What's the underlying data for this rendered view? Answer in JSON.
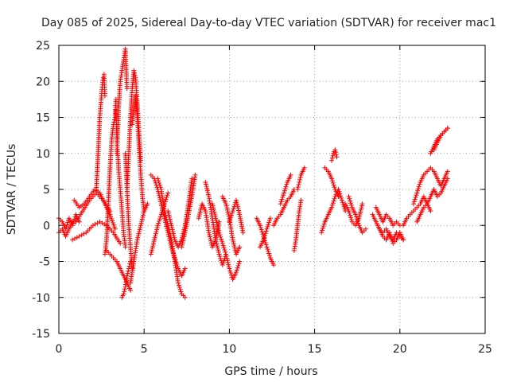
{
  "chart_data": {
    "type": "scatter",
    "title": "Day 085 of 2025, Sidereal Day-to-day VTEC variation (SDTVAR) for receiver mac1",
    "xlabel": "GPS time / hours",
    "ylabel": "SDTVAR / TECUs",
    "xlim": [
      0,
      25
    ],
    "ylim": [
      -15,
      25
    ],
    "xticks": [
      0,
      5,
      10,
      15,
      20,
      25
    ],
    "yticks": [
      -15,
      -10,
      -5,
      0,
      5,
      10,
      15,
      20,
      25
    ],
    "xtick_labels": [
      "0",
      "5",
      "10",
      "15",
      "20",
      "25"
    ],
    "ytick_labels": [
      "-15",
      "-10",
      "-5",
      "0",
      "5",
      "10",
      "15",
      "20",
      "25"
    ],
    "grid": true,
    "marker": "+",
    "series_color": "#ff0000",
    "series": [
      {
        "name": "SDTVAR",
        "segments": [
          {
            "x": [
              0.0,
              0.2,
              0.4,
              0.6,
              0.8,
              1.0,
              1.2
            ],
            "y": [
              1.0,
              0.5,
              -0.5,
              1.0,
              0.0,
              1.5,
              0.5
            ]
          },
          {
            "x": [
              0.0,
              0.2,
              0.4,
              0.6,
              0.8
            ],
            "y": [
              -1.0,
              -0.5,
              -1.5,
              -0.5,
              0.5
            ]
          },
          {
            "x": [
              0.8,
              1.2,
              1.6,
              2.0,
              2.4,
              2.8,
              3.2,
              3.6
            ],
            "y": [
              -2.0,
              -1.5,
              -1.0,
              0.0,
              0.5,
              0.0,
              -1.0,
              -2.5
            ]
          },
          {
            "x": [
              0.9,
              1.2,
              1.5,
              1.8,
              2.1,
              2.4,
              2.7,
              3.0,
              3.3
            ],
            "y": [
              3.5,
              2.5,
              3.0,
              4.0,
              5.0,
              4.5,
              3.0,
              1.5,
              -0.5
            ]
          },
          {
            "x": [
              1.0,
              1.4,
              1.8,
              2.2,
              2.6,
              3.0
            ],
            "y": [
              0.5,
              2.0,
              3.5,
              4.5,
              3.5,
              2.0
            ]
          },
          {
            "x": [
              2.2,
              2.3,
              2.4,
              2.5,
              2.55,
              2.6,
              2.65,
              2.7
            ],
            "y": [
              5.0,
              10.0,
              15.0,
              18.0,
              19.5,
              20.5,
              21.0,
              18.0
            ]
          },
          {
            "x": [
              2.7,
              2.8,
              2.9,
              3.0,
              3.1,
              3.2,
              3.3,
              3.35
            ],
            "y": [
              -4.0,
              -2.0,
              3.0,
              8.0,
              12.0,
              14.0,
              15.0,
              17.5
            ]
          },
          {
            "x": [
              3.35,
              3.4,
              3.5,
              3.6,
              3.7,
              3.8,
              3.9
            ],
            "y": [
              16.0,
              12.0,
              8.0,
              5.0,
              2.0,
              -1.0,
              -3.0
            ]
          },
          {
            "x": [
              2.8,
              3.0,
              3.2,
              3.4,
              3.6,
              3.8,
              4.0,
              4.2
            ],
            "y": [
              -3.5,
              -4.0,
              -4.5,
              -5.0,
              -6.0,
              -7.0,
              -8.0,
              -9.0
            ]
          },
          {
            "x": [
              3.7,
              3.8,
              3.9,
              4.0,
              4.1,
              4.2
            ],
            "y": [
              -10.0,
              -9.5,
              -8.5,
              -7.0,
              -6.0,
              -5.0
            ]
          },
          {
            "x": [
              3.4,
              3.5,
              3.6,
              3.7,
              3.8,
              3.9,
              4.0
            ],
            "y": [
              10.0,
              16.0,
              20.0,
              21.5,
              23.0,
              24.5,
              19.0
            ]
          },
          {
            "x": [
              3.9,
              4.0,
              4.1,
              4.2,
              4.3
            ],
            "y": [
              10.0,
              5.0,
              0.0,
              -3.0,
              -6.0
            ]
          },
          {
            "x": [
              4.0,
              4.1,
              4.2,
              4.3,
              4.4,
              4.5,
              4.6,
              4.7,
              4.8
            ],
            "y": [
              5.0,
              10.0,
              15.0,
              19.0,
              21.5,
              20.5,
              17.0,
              13.0,
              9.0
            ]
          },
          {
            "x": [
              4.3,
              4.4,
              4.5,
              4.6,
              4.7,
              4.8,
              4.9,
              5.0
            ],
            "y": [
              14.0,
              16.0,
              18.0,
              15.0,
              11.0,
              7.0,
              4.0,
              2.0
            ]
          },
          {
            "x": [
              4.2,
              4.4,
              4.6,
              4.8,
              5.0,
              5.2
            ],
            "y": [
              -8.0,
              -5.0,
              -2.0,
              0.0,
              2.0,
              3.0
            ]
          },
          {
            "x": [
              5.4,
              5.6,
              5.8,
              6.0,
              6.2,
              6.4,
              6.6,
              6.8,
              7.0,
              7.2,
              7.4
            ],
            "y": [
              7.0,
              6.5,
              5.0,
              3.0,
              1.0,
              -1.0,
              -3.0,
              -4.5,
              -6.0,
              -7.0,
              -6.0
            ]
          },
          {
            "x": [
              5.8,
              6.0,
              6.2,
              6.4,
              6.6,
              6.8,
              7.0,
              7.2,
              7.4
            ],
            "y": [
              6.5,
              5.0,
              2.0,
              0.0,
              -2.0,
              -5.0,
              -8.0,
              -9.5,
              -10.0
            ]
          },
          {
            "x": [
              5.4,
              5.6,
              5.8,
              6.0,
              6.2,
              6.4
            ],
            "y": [
              -4.0,
              -2.0,
              0.0,
              1.5,
              3.0,
              4.5
            ]
          },
          {
            "x": [
              6.4,
              6.6,
              6.8,
              7.0,
              7.2,
              7.4,
              7.6,
              7.8
            ],
            "y": [
              2.0,
              0.0,
              -2.0,
              -3.0,
              -2.0,
              0.0,
              3.0,
              6.5
            ]
          },
          {
            "x": [
              7.2,
              7.4,
              7.6,
              7.8,
              8.0
            ],
            "y": [
              -3.0,
              -1.0,
              1.5,
              4.0,
              7.0
            ]
          },
          {
            "x": [
              8.2,
              8.4,
              8.6,
              8.8,
              9.0,
              9.2,
              9.4
            ],
            "y": [
              1.0,
              3.0,
              2.0,
              -1.0,
              -3.0,
              -2.0,
              0.5
            ]
          },
          {
            "x": [
              8.6,
              8.8,
              9.0,
              9.2,
              9.4,
              9.6,
              9.8
            ],
            "y": [
              6.0,
              4.0,
              1.0,
              -2.0,
              -4.0,
              -5.5,
              -4.0
            ]
          },
          {
            "x": [
              9.0,
              9.2,
              9.4,
              9.6,
              9.8,
              10.0,
              10.2,
              10.4,
              10.6
            ],
            "y": [
              3.0,
              1.0,
              -1.0,
              -2.5,
              -4.0,
              -6.0,
              -7.5,
              -6.5,
              -5.0
            ]
          },
          {
            "x": [
              9.6,
              9.8,
              10.0,
              10.2,
              10.4,
              10.6
            ],
            "y": [
              4.0,
              3.0,
              1.0,
              -2.0,
              -4.0,
              -3.0
            ]
          },
          {
            "x": [
              10.0,
              10.2,
              10.4,
              10.6,
              10.8
            ],
            "y": [
              0.5,
              2.0,
              3.5,
              1.5,
              -1.0
            ]
          },
          {
            "x": [
              11.6,
              11.8,
              12.0,
              12.2,
              12.4,
              12.6
            ],
            "y": [
              1.0,
              0.0,
              -1.5,
              -3.0,
              -4.5,
              -5.5
            ]
          },
          {
            "x": [
              11.8,
              12.0,
              12.2,
              12.4
            ],
            "y": [
              -3.0,
              -2.0,
              -0.5,
              1.0
            ]
          },
          {
            "x": [
              12.6,
              12.8,
              13.0,
              13.2,
              13.4,
              13.6,
              13.8
            ],
            "y": [
              0.0,
              1.0,
              1.5,
              2.5,
              3.5,
              4.0,
              5.0
            ]
          },
          {
            "x": [
              13.0,
              13.2,
              13.4,
              13.6
            ],
            "y": [
              3.0,
              4.5,
              6.0,
              7.0
            ]
          },
          {
            "x": [
              13.8,
              13.9,
              14.0,
              14.1,
              14.2
            ],
            "y": [
              -3.5,
              -2.0,
              0.0,
              2.0,
              3.5
            ]
          },
          {
            "x": [
              14.0,
              14.1,
              14.2,
              14.3,
              14.4
            ],
            "y": [
              5.0,
              6.0,
              7.0,
              7.5,
              8.0
            ]
          },
          {
            "x": [
              15.4,
              15.6,
              15.8,
              16.0,
              16.2,
              16.4,
              16.6,
              16.8
            ],
            "y": [
              -1.0,
              0.5,
              1.5,
              2.5,
              4.0,
              5.0,
              3.5,
              2.0
            ]
          },
          {
            "x": [
              15.6,
              15.8,
              16.0,
              16.2,
              16.4
            ],
            "y": [
              8.0,
              7.5,
              6.5,
              5.0,
              4.0
            ]
          },
          {
            "x": [
              16.0,
              16.1,
              16.2,
              16.3
            ],
            "y": [
              9.0,
              10.0,
              10.5,
              9.5
            ]
          },
          {
            "x": [
              16.8,
              17.0,
              17.2,
              17.4,
              17.6,
              17.8
            ],
            "y": [
              3.0,
              2.0,
              0.5,
              0.0,
              1.0,
              3.0
            ]
          },
          {
            "x": [
              17.0,
              17.2,
              17.4,
              17.6,
              17.8,
              18.0
            ],
            "y": [
              4.0,
              2.5,
              1.5,
              0.0,
              -1.0,
              -0.5
            ]
          },
          {
            "x": [
              18.4,
              18.6,
              18.8,
              19.0,
              19.2,
              19.4,
              19.6,
              19.8,
              20.0,
              20.2
            ],
            "y": [
              1.5,
              0.5,
              -0.5,
              -1.0,
              -0.5,
              -1.5,
              -2.0,
              -1.0,
              -1.5,
              -2.0
            ]
          },
          {
            "x": [
              18.6,
              18.8,
              19.0,
              19.2,
              19.4,
              19.6,
              19.8,
              20.0
            ],
            "y": [
              2.5,
              1.5,
              0.5,
              1.5,
              1.0,
              0.0,
              0.5,
              0.0
            ]
          },
          {
            "x": [
              18.8,
              19.0,
              19.2,
              19.4,
              19.6,
              19.8,
              20.0,
              20.2
            ],
            "y": [
              -0.5,
              -1.5,
              -2.0,
              -1.0,
              -2.5,
              -2.0,
              -1.0,
              -2.0
            ]
          },
          {
            "x": [
              20.2,
              20.4,
              20.6,
              20.8,
              21.0,
              21.2,
              21.4,
              21.6,
              21.8
            ],
            "y": [
              0.0,
              1.0,
              1.5,
              2.0,
              2.5,
              3.0,
              4.0,
              3.0,
              2.0
            ]
          },
          {
            "x": [
              20.8,
              21.0,
              21.2,
              21.4,
              21.6,
              21.8,
              22.0,
              22.2,
              22.4,
              22.6,
              22.8
            ],
            "y": [
              3.0,
              4.5,
              6.0,
              7.0,
              7.5,
              8.0,
              7.5,
              6.5,
              5.5,
              6.5,
              7.5
            ]
          },
          {
            "x": [
              21.0,
              21.2,
              21.4,
              21.6,
              21.8,
              22.0,
              22.2,
              22.4,
              22.6,
              22.8
            ],
            "y": [
              0.5,
              1.5,
              2.5,
              3.0,
              4.0,
              5.0,
              4.0,
              4.5,
              5.5,
              6.5
            ]
          },
          {
            "x": [
              21.8,
              22.0,
              22.2,
              22.4,
              22.6,
              22.8
            ],
            "y": [
              10.0,
              11.0,
              12.0,
              12.5,
              13.0,
              13.5
            ]
          },
          {
            "x": [
              22.0,
              22.2,
              22.4,
              22.6,
              22.8
            ],
            "y": [
              10.5,
              11.5,
              12.5,
              13.0,
              13.5
            ]
          }
        ]
      }
    ]
  }
}
